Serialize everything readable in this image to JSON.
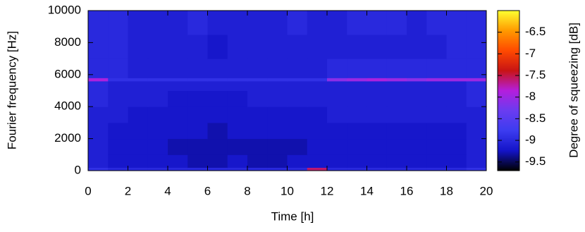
{
  "chart_data": {
    "type": "heatmap",
    "x_label": "Time [h]",
    "y_label": "Fourier frequency [Hz]",
    "colorbar_label": "Degree of squeezing [dB]",
    "x_bins": [
      0,
      1,
      2,
      3,
      4,
      5,
      6,
      7,
      8,
      9,
      10,
      11,
      12,
      13,
      14,
      15,
      16,
      17,
      18,
      19,
      20
    ],
    "y_bins": [
      0,
      200,
      1000,
      2000,
      3000,
      4000,
      5000,
      5600,
      5800,
      7000,
      8500,
      10000
    ],
    "z": [
      [
        -8.9,
        -9.0,
        -9.0,
        -9.0,
        -9.0,
        -9.0,
        -9.0,
        -9.0,
        -9.0,
        -9.0,
        -9.0,
        -7.6,
        -9.0,
        -9.0,
        -9.0,
        -9.0,
        -9.0,
        -9.0,
        -9.0,
        -8.9
      ],
      [
        -9.1,
        -9.2,
        -9.2,
        -9.2,
        -9.2,
        -9.3,
        -9.3,
        -9.2,
        -9.3,
        -9.3,
        -9.2,
        -9.2,
        -9.2,
        -9.2,
        -9.2,
        -9.2,
        -9.2,
        -9.2,
        -9.2,
        -9.1
      ],
      [
        -9.1,
        -9.2,
        -9.2,
        -9.2,
        -9.3,
        -9.3,
        -9.3,
        -9.3,
        -9.3,
        -9.3,
        -9.3,
        -9.2,
        -9.2,
        -9.2,
        -9.2,
        -9.2,
        -9.2,
        -9.2,
        -9.2,
        -9.1
      ],
      [
        -9.1,
        -9.2,
        -9.2,
        -9.2,
        -9.2,
        -9.2,
        -9.3,
        -9.2,
        -9.2,
        -9.2,
        -9.2,
        -9.2,
        -9.2,
        -9.2,
        -9.2,
        -9.2,
        -9.2,
        -9.2,
        -9.2,
        -9.1
      ],
      [
        -9.1,
        -9.1,
        -9.2,
        -9.2,
        -9.2,
        -9.2,
        -9.2,
        -9.2,
        -9.2,
        -9.2,
        -9.2,
        -9.2,
        -9.1,
        -9.1,
        -9.1,
        -9.1,
        -9.1,
        -9.1,
        -9.1,
        -9.1
      ],
      [
        -9.0,
        -9.1,
        -9.1,
        -9.1,
        -9.2,
        -9.2,
        -9.2,
        -9.2,
        -9.1,
        -9.1,
        -9.1,
        -9.1,
        -9.1,
        -9.1,
        -9.1,
        -9.1,
        -9.1,
        -9.1,
        -9.1,
        -9.0
      ],
      [
        -9.0,
        -9.1,
        -9.1,
        -9.1,
        -9.1,
        -9.1,
        -9.1,
        -9.1,
        -9.1,
        -9.1,
        -9.1,
        -9.1,
        -9.1,
        -9.1,
        -9.1,
        -9.1,
        -9.1,
        -9.1,
        -9.1,
        -9.0
      ],
      [
        -7.9,
        -8.9,
        -8.9,
        -8.9,
        -8.9,
        -8.9,
        -8.9,
        -8.9,
        -8.9,
        -8.9,
        -8.9,
        -8.9,
        -8.1,
        -8.0,
        -7.9,
        -8.0,
        -8.1,
        -8.0,
        -8.0,
        -8.0
      ],
      [
        -9.0,
        -9.0,
        -9.1,
        -9.1,
        -9.1,
        -9.1,
        -9.1,
        -9.1,
        -9.1,
        -9.1,
        -9.1,
        -9.1,
        -9.0,
        -9.0,
        -9.0,
        -9.0,
        -9.0,
        -9.0,
        -9.0,
        -9.0
      ],
      [
        -9.0,
        -9.0,
        -9.1,
        -9.1,
        -9.1,
        -9.1,
        -9.2,
        -9.1,
        -9.1,
        -9.1,
        -9.1,
        -9.1,
        -9.1,
        -9.1,
        -9.1,
        -9.1,
        -9.1,
        -9.1,
        -9.0,
        -9.0
      ],
      [
        -9.0,
        -9.0,
        -9.1,
        -9.1,
        -9.1,
        -9.0,
        -9.1,
        -9.1,
        -9.1,
        -9.1,
        -9.0,
        -9.1,
        -9.1,
        -9.0,
        -9.0,
        -9.0,
        -9.1,
        -9.0,
        -9.0,
        -9.0
      ]
    ],
    "xlim": [
      0,
      20
    ],
    "xticks": [
      0,
      2,
      4,
      6,
      8,
      10,
      12,
      14,
      16,
      18,
      20
    ],
    "ylim": [
      0,
      10000
    ],
    "yticks": [
      0,
      2000,
      4000,
      6000,
      8000,
      10000
    ],
    "clim": [
      -9.7,
      -6.0
    ],
    "cticks": [
      -9.5,
      -9,
      -8.5,
      -8,
      -7.5,
      -7,
      -6.5
    ],
    "colormap": [
      "#000000",
      "#1414c8",
      "#3c3cf0",
      "#6a3cf0",
      "#b41edc",
      "#c81414",
      "#ff4a00",
      "#ff9a00",
      "#ffff30"
    ]
  }
}
